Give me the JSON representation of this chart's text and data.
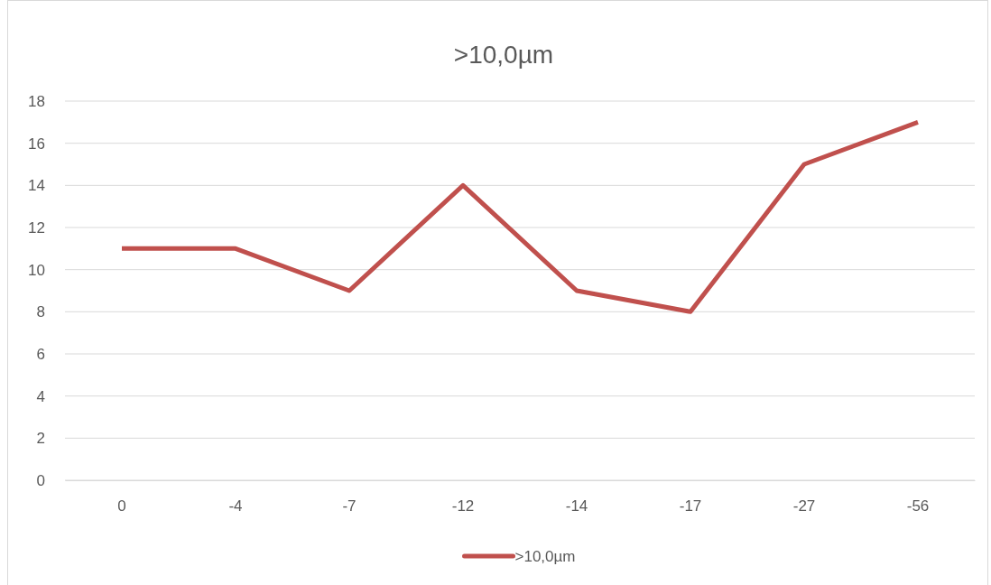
{
  "chart_data": {
    "type": "line",
    "title": ">10,0µm",
    "categories": [
      "0",
      "-4",
      "-7",
      "-12",
      "-14",
      "-17",
      "-27",
      "-56"
    ],
    "series": [
      {
        "name": ">10,0µm",
        "color": "#c0504d",
        "values": [
          11,
          11,
          9,
          14,
          9,
          8,
          15,
          17
        ]
      }
    ],
    "ylim": [
      0,
      18
    ],
    "yticks": [
      0,
      2,
      4,
      6,
      8,
      10,
      12,
      14,
      16,
      18
    ],
    "grid": "y",
    "legend": "bottom",
    "marker": "none",
    "line_style": "solid"
  }
}
